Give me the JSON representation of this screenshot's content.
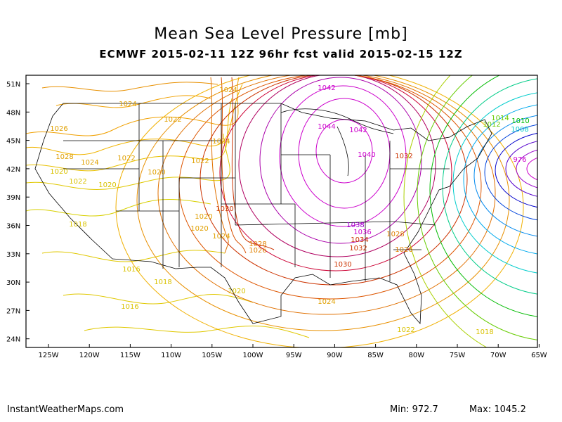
{
  "title": "Mean Sea Level Pressure [mb]",
  "subtitle": "ECMWF 2015-02-11 12Z 96hr fcst valid 2015-02-15 12Z",
  "footer": {
    "site": "InstantWeatherMaps.com",
    "min_label": "Min:",
    "min_value": "972.7",
    "max_label": "Max:",
    "max_value": "1045.2"
  },
  "map": {
    "lat_ticks": [
      "51N",
      "48N",
      "45N",
      "42N",
      "39N",
      "36N",
      "33N",
      "30N",
      "27N",
      "24N"
    ],
    "lon_ticks": [
      "125W",
      "120W",
      "115W",
      "110W",
      "105W",
      "100W",
      "95W",
      "90W",
      "85W",
      "80W",
      "75W",
      "70W",
      "65W"
    ],
    "high_center_pressure": 1045.2,
    "low_center_pressure": 972.7,
    "colors": {
      "frame": "#000000",
      "borders": "#000000",
      "low_ring": "#ffd500",
      "mid": "#f0a000",
      "high": "#cc3300",
      "very_high": "#cc00cc"
    },
    "contour_labels": [
      {
        "text": "1024",
        "color": "#e0a000"
      },
      {
        "text": "1024",
        "color": "#e0a000"
      },
      {
        "text": "1022",
        "color": "#e0a000"
      },
      {
        "text": "1026",
        "color": "#e0a000"
      },
      {
        "text": "1024",
        "color": "#e0a000"
      },
      {
        "text": "1028",
        "color": "#e0a000"
      },
      {
        "text": "1024",
        "color": "#e0a000"
      },
      {
        "text": "1022",
        "color": "#e0a000"
      },
      {
        "text": "1022",
        "color": "#e0a000"
      },
      {
        "text": "1020",
        "color": "#e0a000"
      },
      {
        "text": "1020",
        "color": "#d9c200"
      },
      {
        "text": "1022",
        "color": "#d9c200"
      },
      {
        "text": "1020",
        "color": "#d9c200"
      },
      {
        "text": "1018",
        "color": "#d9c200"
      },
      {
        "text": "1020",
        "color": "#e0a000"
      },
      {
        "text": "1030",
        "color": "#cc3300"
      },
      {
        "text": "1020",
        "color": "#e0a000"
      },
      {
        "text": "1024",
        "color": "#e0a000"
      },
      {
        "text": "1028",
        "color": "#e08000"
      },
      {
        "text": "1026",
        "color": "#e08000"
      },
      {
        "text": "1016",
        "color": "#d9c200"
      },
      {
        "text": "1018",
        "color": "#d9c200"
      },
      {
        "text": "1020",
        "color": "#d9c200"
      },
      {
        "text": "1016",
        "color": "#d9c200"
      },
      {
        "text": "1042",
        "color": "#cc00cc"
      },
      {
        "text": "1044",
        "color": "#cc00cc"
      },
      {
        "text": "1042",
        "color": "#cc00cc"
      },
      {
        "text": "1040",
        "color": "#cc00cc"
      },
      {
        "text": "1032",
        "color": "#cc3300"
      },
      {
        "text": "1038",
        "color": "#9900cc"
      },
      {
        "text": "1036",
        "color": "#cc00cc"
      },
      {
        "text": "1034",
        "color": "#cc3300"
      },
      {
        "text": "1032",
        "color": "#cc3300"
      },
      {
        "text": "1030",
        "color": "#cc3300"
      },
      {
        "text": "1028",
        "color": "#e08000"
      },
      {
        "text": "1026",
        "color": "#e08000"
      },
      {
        "text": "1024",
        "color": "#e0a000"
      },
      {
        "text": "1022",
        "color": "#d9c200"
      },
      {
        "text": "1018",
        "color": "#d9c200"
      },
      {
        "text": "1014",
        "color": "#66cc00"
      },
      {
        "text": "1010",
        "color": "#00bb00"
      },
      {
        "text": "1012",
        "color": "#66cc00"
      },
      {
        "text": "1008",
        "color": "#00cccc"
      },
      {
        "text": "976",
        "color": "#cc00cc"
      }
    ]
  }
}
